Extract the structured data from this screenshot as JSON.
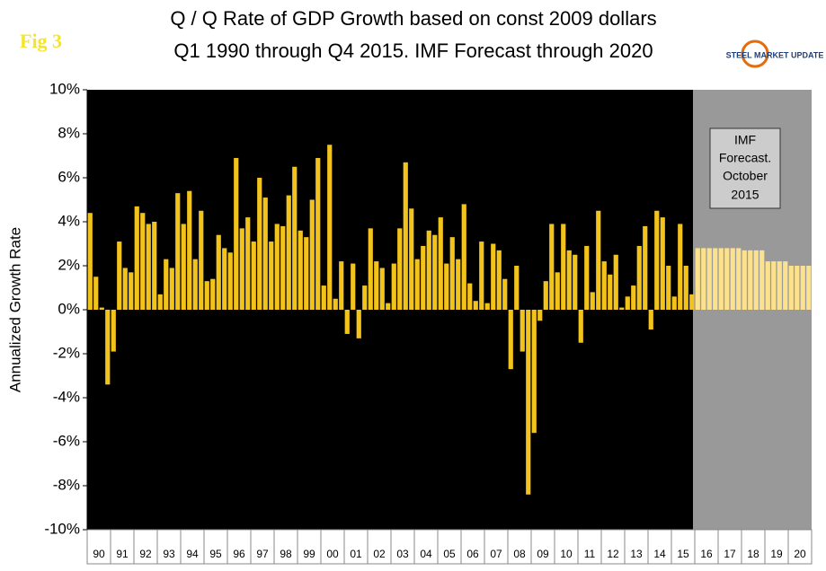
{
  "chart_data": {
    "type": "bar",
    "title_lines": [
      "Q / Q Rate of GDP Growth based on const 2009 dollars",
      "Q1 1990 through Q4 2015. IMF Forecast through 2020"
    ],
    "figure_label": "Fig 3",
    "logo": "STEEL MARKET UPDATE",
    "y_label": "Annualized Growth Rate",
    "annotation_lines": [
      "IMF",
      "Forecast.",
      "October",
      "2015"
    ],
    "years": [
      "90",
      "91",
      "92",
      "93",
      "94",
      "95",
      "96",
      "97",
      "98",
      "99",
      "00",
      "01",
      "02",
      "03",
      "04",
      "05",
      "06",
      "07",
      "08",
      "09",
      "10",
      "11",
      "12",
      "13",
      "14",
      "15",
      "16",
      "17",
      "18",
      "19",
      "20"
    ],
    "series": [
      {
        "color": "#f2c31b",
        "values": [
          4.4,
          1.5,
          0.1,
          -3.4,
          -1.9,
          3.1,
          1.9,
          1.7,
          4.7,
          4.4,
          3.9,
          4.0,
          0.7,
          2.3,
          1.9,
          5.3,
          3.9,
          5.4,
          2.3,
          4.5,
          1.3,
          1.4,
          3.4,
          2.8,
          2.6,
          6.9,
          3.7,
          4.2,
          3.1,
          6.0,
          5.1,
          3.1,
          3.9,
          3.8,
          5.2,
          6.5,
          3.6,
          3.3,
          5.0,
          6.9,
          1.1,
          7.5,
          0.5,
          2.2,
          -1.1,
          2.1,
          -1.3,
          1.1,
          3.7,
          2.2,
          1.9,
          0.3,
          2.1,
          3.7,
          6.7,
          4.6,
          2.3,
          2.9,
          3.6,
          3.4,
          4.2,
          2.1,
          3.3,
          2.3,
          4.8,
          1.2,
          0.4,
          3.1,
          0.3,
          3.0,
          2.7,
          1.4,
          -2.7,
          2.0,
          -1.9,
          -8.4,
          -5.6,
          -0.5,
          1.3,
          3.9,
          1.7,
          3.9,
          2.7,
          2.5,
          -1.5,
          2.9,
          0.8,
          4.5,
          2.2,
          1.6,
          2.5,
          0.1,
          0.6,
          1.1,
          2.9,
          3.8,
          -0.9,
          4.5,
          4.2,
          2.0,
          0.6,
          3.9,
          2.0,
          0.7,
          null,
          null,
          null,
          null,
          null,
          null,
          null,
          null,
          null,
          null,
          null,
          null,
          null,
          null,
          null,
          null,
          null,
          null,
          null,
          null
        ]
      },
      {
        "color": "#fde28e",
        "values": [
          null,
          null,
          null,
          null,
          null,
          null,
          null,
          null,
          null,
          null,
          null,
          null,
          null,
          null,
          null,
          null,
          null,
          null,
          null,
          null,
          null,
          null,
          null,
          null,
          null,
          null,
          null,
          null,
          null,
          null,
          null,
          null,
          null,
          null,
          null,
          null,
          null,
          null,
          null,
          null,
          null,
          null,
          null,
          null,
          null,
          null,
          null,
          null,
          null,
          null,
          null,
          null,
          null,
          null,
          null,
          null,
          null,
          null,
          null,
          null,
          null,
          null,
          null,
          null,
          null,
          null,
          null,
          null,
          null,
          null,
          null,
          null,
          null,
          null,
          null,
          null,
          null,
          null,
          null,
          null,
          null,
          null,
          null,
          null,
          null,
          null,
          null,
          null,
          null,
          null,
          null,
          null,
          null,
          null,
          null,
          null,
          null,
          null,
          null,
          null,
          null,
          null,
          null,
          null,
          2.8,
          2.8,
          2.8,
          2.8,
          2.8,
          2.8,
          2.8,
          2.8,
          2.7,
          2.7,
          2.7,
          2.7,
          2.2,
          2.2,
          2.2,
          2.2,
          2.0,
          2.0,
          2.0,
          2.0
        ]
      }
    ],
    "ylim": [
      -10,
      10
    ],
    "yticks": [
      {
        "value": -10,
        "label": "-10%"
      },
      {
        "value": -8,
        "label": "-8%"
      },
      {
        "value": -6,
        "label": "-6%"
      },
      {
        "value": -4,
        "label": "-4%"
      },
      {
        "value": -2,
        "label": "-2%"
      },
      {
        "value": 0,
        "label": "0%"
      },
      {
        "value": 2,
        "label": "2%"
      },
      {
        "value": 4,
        "label": "4%"
      },
      {
        "value": 6,
        "label": "6%"
      },
      {
        "value": 8,
        "label": "8%"
      },
      {
        "value": 10,
        "label": "10%"
      }
    ],
    "grid": false
  }
}
